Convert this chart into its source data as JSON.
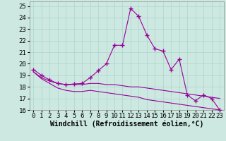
{
  "xlabel": "Windchill (Refroidissement éolien,°C)",
  "background_color": "#cce8e0",
  "line_color": "#990099",
  "grid_color": "#aad4cc",
  "xlim": [
    -0.5,
    23.5
  ],
  "ylim": [
    16,
    25.4
  ],
  "xticks": [
    0,
    1,
    2,
    3,
    4,
    5,
    6,
    7,
    8,
    9,
    10,
    11,
    12,
    13,
    14,
    15,
    16,
    17,
    18,
    19,
    20,
    21,
    22,
    23
  ],
  "yticks": [
    16,
    17,
    18,
    19,
    20,
    21,
    22,
    23,
    24,
    25
  ],
  "series1_x": [
    0,
    1,
    2,
    3,
    4,
    5,
    6,
    7,
    8,
    9,
    10,
    11,
    12,
    13,
    14,
    15,
    16,
    17,
    18,
    19,
    20,
    21,
    22,
    23
  ],
  "series1_y": [
    19.5,
    19.0,
    18.6,
    18.3,
    18.2,
    18.25,
    18.3,
    18.8,
    19.4,
    20.0,
    21.6,
    21.6,
    24.8,
    24.1,
    22.5,
    21.3,
    21.1,
    19.5,
    20.4,
    17.3,
    16.8,
    17.3,
    17.0,
    16.0
  ],
  "series2_x": [
    0,
    1,
    2,
    3,
    4,
    5,
    6,
    7,
    8,
    9,
    10,
    11,
    12,
    13,
    14,
    15,
    16,
    17,
    18,
    19,
    20,
    21,
    22,
    23
  ],
  "series2_y": [
    19.3,
    18.8,
    18.5,
    18.3,
    18.2,
    18.2,
    18.2,
    18.3,
    18.3,
    18.2,
    18.2,
    18.1,
    18.0,
    18.0,
    17.9,
    17.8,
    17.7,
    17.6,
    17.5,
    17.4,
    17.3,
    17.2,
    17.1,
    17.0
  ],
  "series3_x": [
    0,
    1,
    2,
    3,
    4,
    5,
    6,
    7,
    8,
    9,
    10,
    11,
    12,
    13,
    14,
    15,
    16,
    17,
    18,
    19,
    20,
    21,
    22,
    23
  ],
  "series3_y": [
    19.3,
    18.7,
    18.3,
    17.9,
    17.7,
    17.6,
    17.6,
    17.7,
    17.6,
    17.5,
    17.4,
    17.3,
    17.2,
    17.1,
    16.9,
    16.8,
    16.7,
    16.6,
    16.5,
    16.4,
    16.3,
    16.2,
    16.1,
    16.0
  ],
  "font_family": "monospace",
  "tick_fontsize": 6.5,
  "xlabel_fontsize": 7.0
}
